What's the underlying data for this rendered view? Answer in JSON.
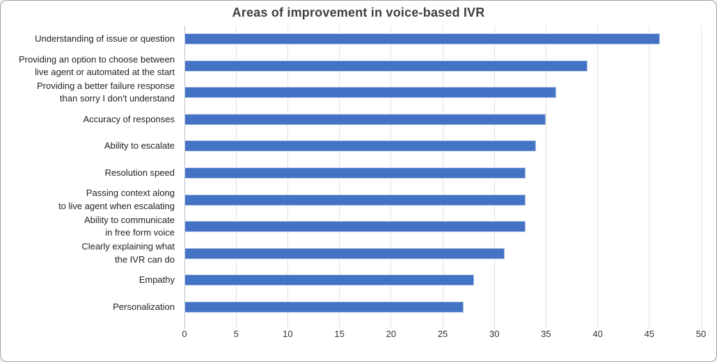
{
  "chart_data": {
    "type": "bar",
    "orientation": "horizontal",
    "title": "Areas of improvement in voice-based IVR",
    "categories": [
      "Understanding of issue or question",
      "Providing an option to choose between\nlive agent or automated at the start",
      "Providing a better failure response\nthan sorry I don't understand",
      "Accuracy of responses",
      "Ability to escalate",
      "Resolution speed",
      "Passing context along\nto live agent when escalating",
      "Ability to communicate\nin free form voice",
      "Clearly explaining what\nthe IVR can do",
      "Empathy",
      "Personalization"
    ],
    "values": [
      46,
      39,
      36,
      35,
      34,
      33,
      33,
      33,
      31,
      28,
      27
    ],
    "xlabel": "",
    "ylabel": "",
    "xlim": [
      0,
      50
    ],
    "x_ticks": [
      0,
      5,
      10,
      15,
      20,
      25,
      30,
      35,
      40,
      45,
      50
    ],
    "grid": "vertical",
    "legend": "none"
  },
  "colors": {
    "bar_fill": "#4472C4",
    "bar_border": "#B4C7E7",
    "gridline": "#E0E0E0",
    "axis_line": "#BFBFBF",
    "title_text": "#3F3F3F",
    "label_text": "#1F1F1F",
    "chart_border": "#A0A0A0",
    "background": "#FFFFFF"
  }
}
